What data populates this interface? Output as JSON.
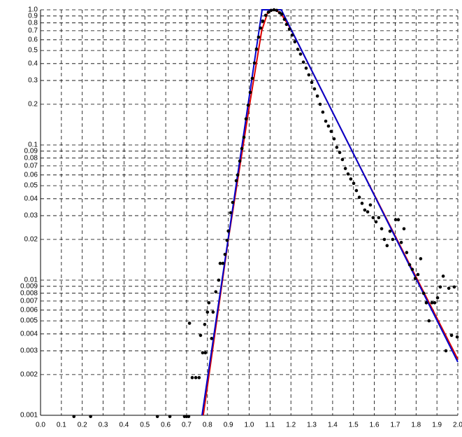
{
  "chart_data": {
    "type": "scatter",
    "log_y": true,
    "grid": true,
    "xlim": [
      0,
      2
    ],
    "ylim": [
      0.001,
      1
    ],
    "xticks": [
      {
        "value": 0,
        "label": "0.0"
      },
      0.1,
      0.2,
      0.3,
      0.4,
      0.5,
      0.6,
      0.7,
      0.8,
      0.9,
      {
        "value": 1,
        "label": "1.0"
      },
      1.1,
      1.2,
      1.3,
      1.4,
      1.5,
      1.6,
      1.7,
      1.8,
      1.9,
      {
        "value": 2,
        "label": "2.0"
      }
    ],
    "yticks": [
      0.001,
      0.002,
      0.003,
      0.004,
      0.005,
      0.006,
      0.007,
      0.008,
      0.009,
      0.01,
      0.02,
      0.03,
      0.04,
      0.05,
      0.06,
      0.07,
      0.08,
      0.09,
      0.1,
      0.2,
      0.3,
      0.4,
      0.5,
      0.6,
      0.7,
      0.8,
      0.9,
      {
        "value": 1,
        "label": "1.0"
      }
    ],
    "points": {
      "color": "#000000",
      "x": [
        0.16,
        0.24,
        0.56,
        0.62,
        0.69,
        0.7,
        0.71,
        0.714,
        0.727,
        0.744,
        0.76,
        0.767,
        0.777,
        0.79,
        0.787,
        0.8,
        0.807,
        0.82,
        0.827,
        0.84,
        0.854,
        0.861,
        0.874,
        0.884,
        0.894,
        0.9,
        0.911,
        0.921,
        0.938,
        0.945,
        0.955,
        0.965,
        0.975,
        0.985,
        0.995,
        1.005,
        1.015,
        1.025,
        1.035,
        1.045,
        1.055,
        1.065,
        1.079,
        1.092,
        1.105,
        1.119,
        1.132,
        1.146,
        1.156,
        1.169,
        1.179,
        1.193,
        1.206,
        1.219,
        1.233,
        1.246,
        1.26,
        1.273,
        1.286,
        1.3,
        1.313,
        1.327,
        1.34,
        1.353,
        1.367,
        1.38,
        1.393,
        1.407,
        1.42,
        1.434,
        1.447,
        1.461,
        1.474,
        1.487,
        1.501,
        1.514,
        1.528,
        1.541,
        1.554,
        1.568,
        1.581,
        1.594,
        1.608,
        1.621,
        1.635,
        1.648,
        1.661,
        1.675,
        1.688,
        1.702,
        1.715,
        1.729,
        1.742,
        1.755,
        1.769,
        1.782,
        1.796,
        1.809,
        1.822,
        1.836,
        1.849,
        1.862,
        1.876,
        1.889,
        1.903,
        1.916,
        1.93,
        1.943,
        1.957,
        1.97,
        1.983,
        1.997
      ],
      "y": [
        0.00098,
        0.00098,
        0.00098,
        0.00098,
        0.00098,
        0.00098,
        0.00098,
        0.0048,
        0.0019,
        0.0019,
        0.0019,
        0.0039,
        0.0029,
        0.0029,
        0.0047,
        0.0058,
        0.0068,
        0.0037,
        0.0058,
        0.0082,
        0.01,
        0.0133,
        0.0133,
        0.0155,
        0.0197,
        0.0231,
        0.0315,
        0.0376,
        0.0544,
        0.06,
        0.076,
        0.094,
        0.114,
        0.156,
        0.197,
        0.245,
        0.311,
        0.404,
        0.513,
        0.628,
        0.733,
        0.826,
        0.91,
        0.96,
        0.99,
        1.0,
        0.99,
        0.95,
        0.93,
        0.85,
        0.78,
        0.72,
        0.65,
        0.58,
        0.51,
        0.47,
        0.41,
        0.37,
        0.33,
        0.29,
        0.26,
        0.23,
        0.2,
        0.175,
        0.15,
        0.138,
        0.126,
        0.111,
        0.096,
        0.088,
        0.078,
        0.067,
        0.061,
        0.056,
        0.052,
        0.046,
        0.041,
        0.037,
        0.033,
        0.032,
        0.036,
        0.029,
        0.027,
        0.029,
        0.024,
        0.02,
        0.018,
        0.023,
        0.02,
        0.028,
        0.028,
        0.019,
        0.024,
        0.016,
        0.013,
        0.012,
        0.0103,
        0.011,
        0.0144,
        0.008,
        0.0068,
        0.005,
        0.0068,
        0.0068,
        0.0074,
        0.0089,
        0.0107,
        0.003,
        0.0087,
        0.0039,
        0.0089,
        0.0038
      ]
    },
    "lines": [
      {
        "color": "#dd0000",
        "x": [
          0.78,
          0.9,
          1.0,
          1.06,
          1.09,
          1.12,
          1.15,
          1.2,
          1.5,
          2.0
        ],
        "y": [
          0.001,
          0.02,
          0.19,
          0.7,
          0.97,
          1.0,
          0.95,
          0.72,
          0.086,
          0.0026
        ]
      },
      {
        "color": "#0000cc",
        "x": [
          0.774,
          1.062,
          1.154,
          2.0
        ],
        "y": [
          0.001,
          1.0,
          1.0,
          0.00248
        ]
      }
    ]
  }
}
